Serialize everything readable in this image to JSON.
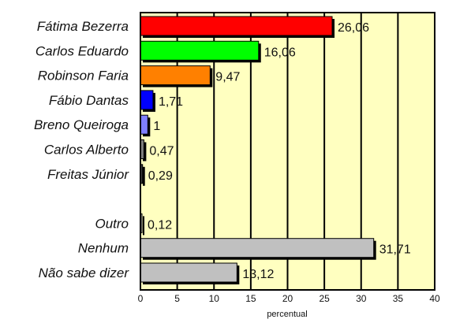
{
  "chart_data": {
    "type": "bar",
    "orientation": "horizontal",
    "title": "",
    "xlabel": "percentual",
    "ylabel": "",
    "xlim": [
      0,
      40
    ],
    "xticks": [
      0,
      5,
      10,
      15,
      20,
      25,
      30,
      35,
      40
    ],
    "grid": "vertical",
    "plot_background": "#ffffc0",
    "categories": [
      "Fátima Bezerra",
      "Carlos Eduardo",
      "Robinson Faria",
      "Fábio Dantas",
      "Breno Queiroga",
      "Carlos Alberto",
      "Freitas Júnior",
      "Outro",
      "Nenhum",
      "Não sabe dizer"
    ],
    "values": [
      26.06,
      16.06,
      9.47,
      1.71,
      1,
      0.47,
      0.29,
      0.12,
      31.71,
      13.12
    ],
    "value_labels": [
      "26,06",
      "16,06",
      "9,47",
      "1,71",
      "1",
      "0,47",
      "0,29",
      "0,12",
      "31,71",
      "13,12"
    ],
    "colors": [
      "#ff0000",
      "#00ff00",
      "#ff8000",
      "#0000ff",
      "#8080ff",
      "#808080",
      "#404040",
      "#c0c0c0",
      "#c0c0c0",
      "#c0c0c0"
    ]
  }
}
